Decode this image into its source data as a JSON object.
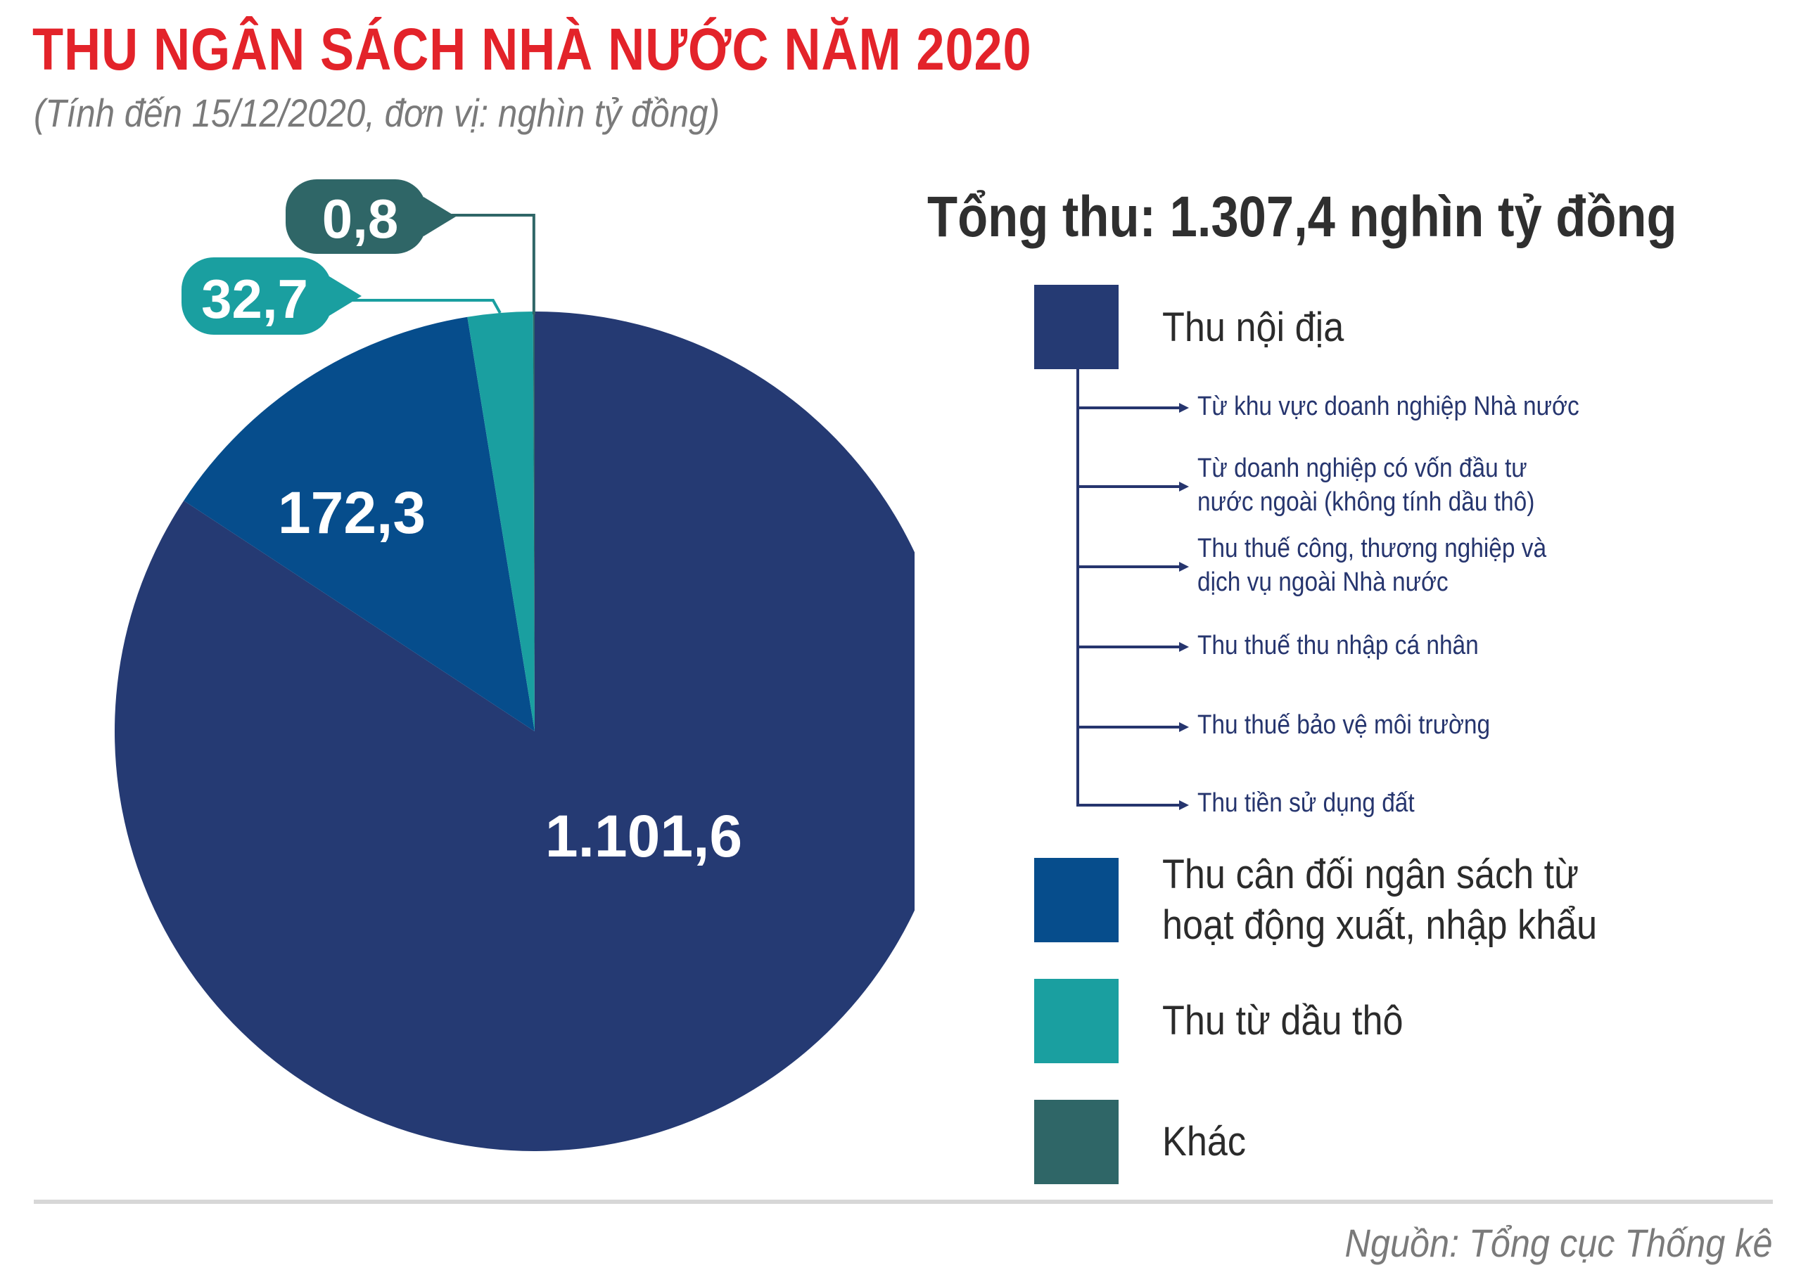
{
  "title": "THU NGÂN SÁCH NHÀ NƯỚC NĂM 2020",
  "subtitle": "(Tính đến 15/12/2020, đơn vị: nghìn tỷ đồng)",
  "total_label": "Tổng thu: 1.307,4 nghìn tỷ đồng",
  "source": "Nguồn: Tổng cục Thống kê",
  "chart_data": {
    "type": "pie",
    "title": "THU NGÂN SÁCH NHÀ NƯỚC NĂM 2020",
    "unit": "nghìn tỷ đồng",
    "total": 1307.4,
    "slices": [
      {
        "name": "Thu nội địa",
        "value": 1101.6,
        "label": "1.101,6",
        "color": "#253a73"
      },
      {
        "name": "Thu cân đối ngân sách từ hoạt động xuất, nhập khẩu",
        "value": 172.3,
        "label": "172,3",
        "color": "#064d8c"
      },
      {
        "name": "Thu từ dầu thô",
        "value": 32.7,
        "label": "32,7",
        "color": "#1a9fa0"
      },
      {
        "name": "Khác",
        "value": 0.8,
        "label": "0,8",
        "color": "#2f6667"
      }
    ]
  },
  "legend": {
    "items": [
      {
        "lines": [
          "Thu nội địa"
        ],
        "color": "#253a73"
      },
      {
        "lines": [
          "Thu cân đối ngân sách từ",
          "hoạt động xuất, nhập khẩu"
        ],
        "color": "#064d8c"
      },
      {
        "lines": [
          "Thu từ dầu thô"
        ],
        "color": "#1a9fa0"
      },
      {
        "lines": [
          "Khác"
        ],
        "color": "#2f6667"
      }
    ],
    "sub_items": [
      [
        "Từ khu vực doanh nghiệp Nhà nước"
      ],
      [
        "Từ doanh nghiệp có vốn đầu tư",
        "nước ngoài (không tính dầu thô)"
      ],
      [
        "Thu thuế công, thương nghiệp và",
        "dịch vụ ngoài Nhà nước"
      ],
      [
        "Thu thuế thu nhập cá nhân"
      ],
      [
        "Thu thuế bảo vệ môi trường"
      ],
      [
        "Thu tiền sử dụng đất"
      ]
    ]
  }
}
